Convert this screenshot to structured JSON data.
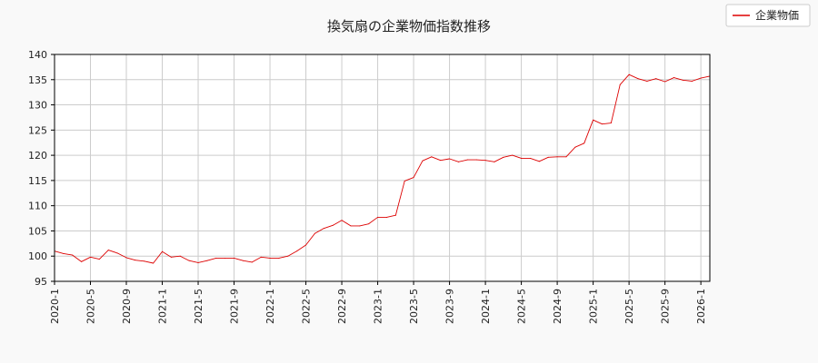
{
  "chart_data": {
    "type": "line",
    "title": "換気扇の企業物価指数推移",
    "xlabel": "",
    "ylabel": "",
    "ylim": [
      95,
      140
    ],
    "yticks": [
      95,
      100,
      105,
      110,
      115,
      120,
      125,
      130,
      135,
      140
    ],
    "xticks": [
      "2020-1",
      "2020-5",
      "2020-9",
      "2021-1",
      "2021-5",
      "2021-9",
      "2022-1",
      "2022-5",
      "2022-9",
      "2023-1",
      "2023-5",
      "2023-9",
      "2024-1",
      "2024-5",
      "2024-9",
      "2025-1",
      "2025-5",
      "2025-9",
      "2026-1"
    ],
    "grid": true,
    "legend_position": "top-right",
    "series": [
      {
        "name": "企業物価",
        "color": "#dd0000",
        "x": [
          "2020-1",
          "2020-2",
          "2020-3",
          "2020-4",
          "2020-5",
          "2020-6",
          "2020-7",
          "2020-8",
          "2020-9",
          "2020-10",
          "2020-11",
          "2020-12",
          "2021-1",
          "2021-2",
          "2021-3",
          "2021-4",
          "2021-5",
          "2021-6",
          "2021-7",
          "2021-8",
          "2021-9",
          "2021-10",
          "2021-11",
          "2021-12",
          "2022-1",
          "2022-2",
          "2022-3",
          "2022-4",
          "2022-5",
          "2022-6",
          "2022-7",
          "2022-8",
          "2022-9",
          "2022-10",
          "2022-11",
          "2022-12",
          "2023-1",
          "2023-2",
          "2023-3",
          "2023-4",
          "2023-5",
          "2023-6",
          "2023-7",
          "2023-8",
          "2023-9",
          "2023-10",
          "2023-11",
          "2023-12",
          "2024-1",
          "2024-2",
          "2024-3",
          "2024-4",
          "2024-5",
          "2024-6",
          "2024-7",
          "2024-8",
          "2024-9",
          "2024-10",
          "2024-11",
          "2024-12",
          "2025-1",
          "2025-2",
          "2025-3",
          "2025-4",
          "2025-5",
          "2025-6",
          "2025-7",
          "2025-8",
          "2025-9",
          "2025-10",
          "2025-11",
          "2025-12",
          "2026-1",
          "2026-2"
        ],
        "values": [
          101.0,
          100.5,
          100.2,
          98.9,
          99.8,
          99.4,
          101.2,
          100.6,
          99.7,
          99.2,
          99.0,
          98.6,
          100.9,
          99.8,
          100.0,
          99.1,
          98.7,
          99.1,
          99.6,
          99.6,
          99.6,
          99.1,
          98.8,
          99.8,
          99.6,
          99.6,
          100.0,
          101.0,
          102.2,
          104.5,
          105.5,
          106.1,
          107.1,
          106.0,
          106.0,
          106.4,
          107.7,
          107.7,
          108.1,
          114.9,
          115.6,
          118.9,
          119.7,
          119.0,
          119.3,
          118.7,
          119.1,
          119.1,
          119.0,
          118.7,
          119.6,
          120.0,
          119.4,
          119.4,
          118.8,
          119.6,
          119.7,
          119.7,
          121.6,
          122.4,
          127.0,
          126.2,
          126.4,
          134.0,
          136.0,
          135.2,
          134.7,
          135.2,
          134.6,
          135.4,
          134.9,
          134.7,
          135.3,
          135.7
        ]
      }
    ]
  }
}
